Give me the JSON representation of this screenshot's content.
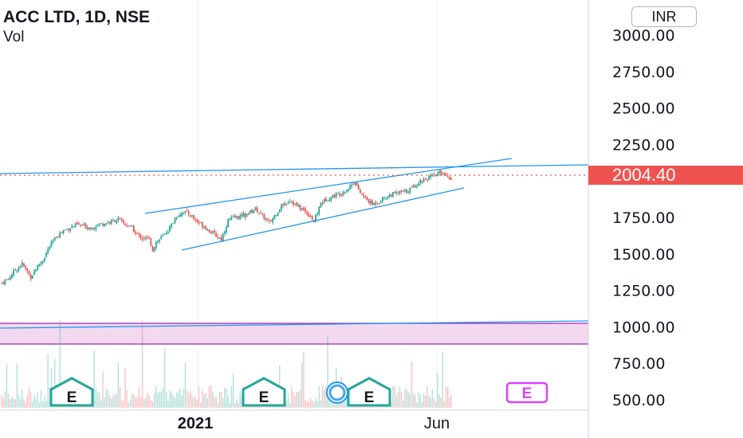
{
  "header": {
    "title": "ACC LTD, 1D, NSE",
    "subtitle": "Vol",
    "currency": "INR"
  },
  "price_tag": {
    "value": "2004.40",
    "color": "#ef5350"
  },
  "colors": {
    "up": "#26a69a",
    "down": "#ef5350",
    "trendline": "#2196f3",
    "zone_fill": "#f3d9f0",
    "zone_border": "#9c27b0",
    "earnings": "#26a69a",
    "earnings_future": "#e040fb"
  },
  "chart_data": {
    "type": "candlestick",
    "title": "ACC LTD, 1D, NSE",
    "y_ticks": [
      "3000.00",
      "2750.00",
      "2500.00",
      "2250.00",
      "1750.00",
      "1500.00",
      "1250.00",
      "1000.00",
      "750.00",
      "500.00"
    ],
    "y_tick_values": [
      3000,
      2750,
      2500,
      2250,
      1750,
      1500,
      1250,
      1000,
      750,
      500
    ],
    "ylim": [
      460,
      3060
    ],
    "x_ticks": [
      "2021",
      "Jun"
    ],
    "last_price": 2004.4,
    "earnings_markers": [
      "E",
      "E",
      "E",
      "E",
      "E"
    ],
    "trend_points": [
      [
        0,
        1300
      ],
      [
        4,
        1330
      ],
      [
        8,
        1390
      ],
      [
        12,
        1430
      ],
      [
        15,
        1380
      ],
      [
        17,
        1340
      ],
      [
        20,
        1400
      ],
      [
        24,
        1460
      ],
      [
        28,
        1550
      ],
      [
        32,
        1620
      ],
      [
        36,
        1660
      ],
      [
        40,
        1680
      ],
      [
        44,
        1700
      ],
      [
        48,
        1690
      ],
      [
        52,
        1680
      ],
      [
        56,
        1700
      ],
      [
        60,
        1710
      ],
      [
        64,
        1720
      ],
      [
        68,
        1740
      ],
      [
        72,
        1700
      ],
      [
        76,
        1680
      ],
      [
        78,
        1640
      ],
      [
        82,
        1610
      ],
      [
        86,
        1600
      ],
      [
        88,
        1530
      ],
      [
        90,
        1580
      ],
      [
        94,
        1620
      ],
      [
        98,
        1680
      ],
      [
        102,
        1760
      ],
      [
        106,
        1790
      ],
      [
        110,
        1770
      ],
      [
        114,
        1720
      ],
      [
        118,
        1690
      ],
      [
        122,
        1650
      ],
      [
        126,
        1620
      ],
      [
        128,
        1600
      ],
      [
        132,
        1730
      ],
      [
        136,
        1750
      ],
      [
        140,
        1760
      ],
      [
        144,
        1780
      ],
      [
        148,
        1810
      ],
      [
        152,
        1760
      ],
      [
        156,
        1710
      ],
      [
        160,
        1780
      ],
      [
        164,
        1840
      ],
      [
        168,
        1870
      ],
      [
        172,
        1830
      ],
      [
        176,
        1800
      ],
      [
        180,
        1760
      ],
      [
        182,
        1720
      ],
      [
        186,
        1850
      ],
      [
        190,
        1880
      ],
      [
        194,
        1900
      ],
      [
        198,
        1920
      ],
      [
        202,
        1950
      ],
      [
        206,
        2000
      ],
      [
        208,
        1930
      ],
      [
        212,
        1880
      ],
      [
        216,
        1840
      ],
      [
        220,
        1860
      ],
      [
        224,
        1890
      ],
      [
        228,
        1910
      ],
      [
        232,
        1920
      ],
      [
        236,
        1930
      ],
      [
        240,
        1960
      ],
      [
        244,
        2000
      ],
      [
        248,
        2020
      ],
      [
        252,
        2030
      ],
      [
        256,
        2060
      ],
      [
        260,
        2040
      ],
      [
        262,
        2004
      ]
    ]
  }
}
